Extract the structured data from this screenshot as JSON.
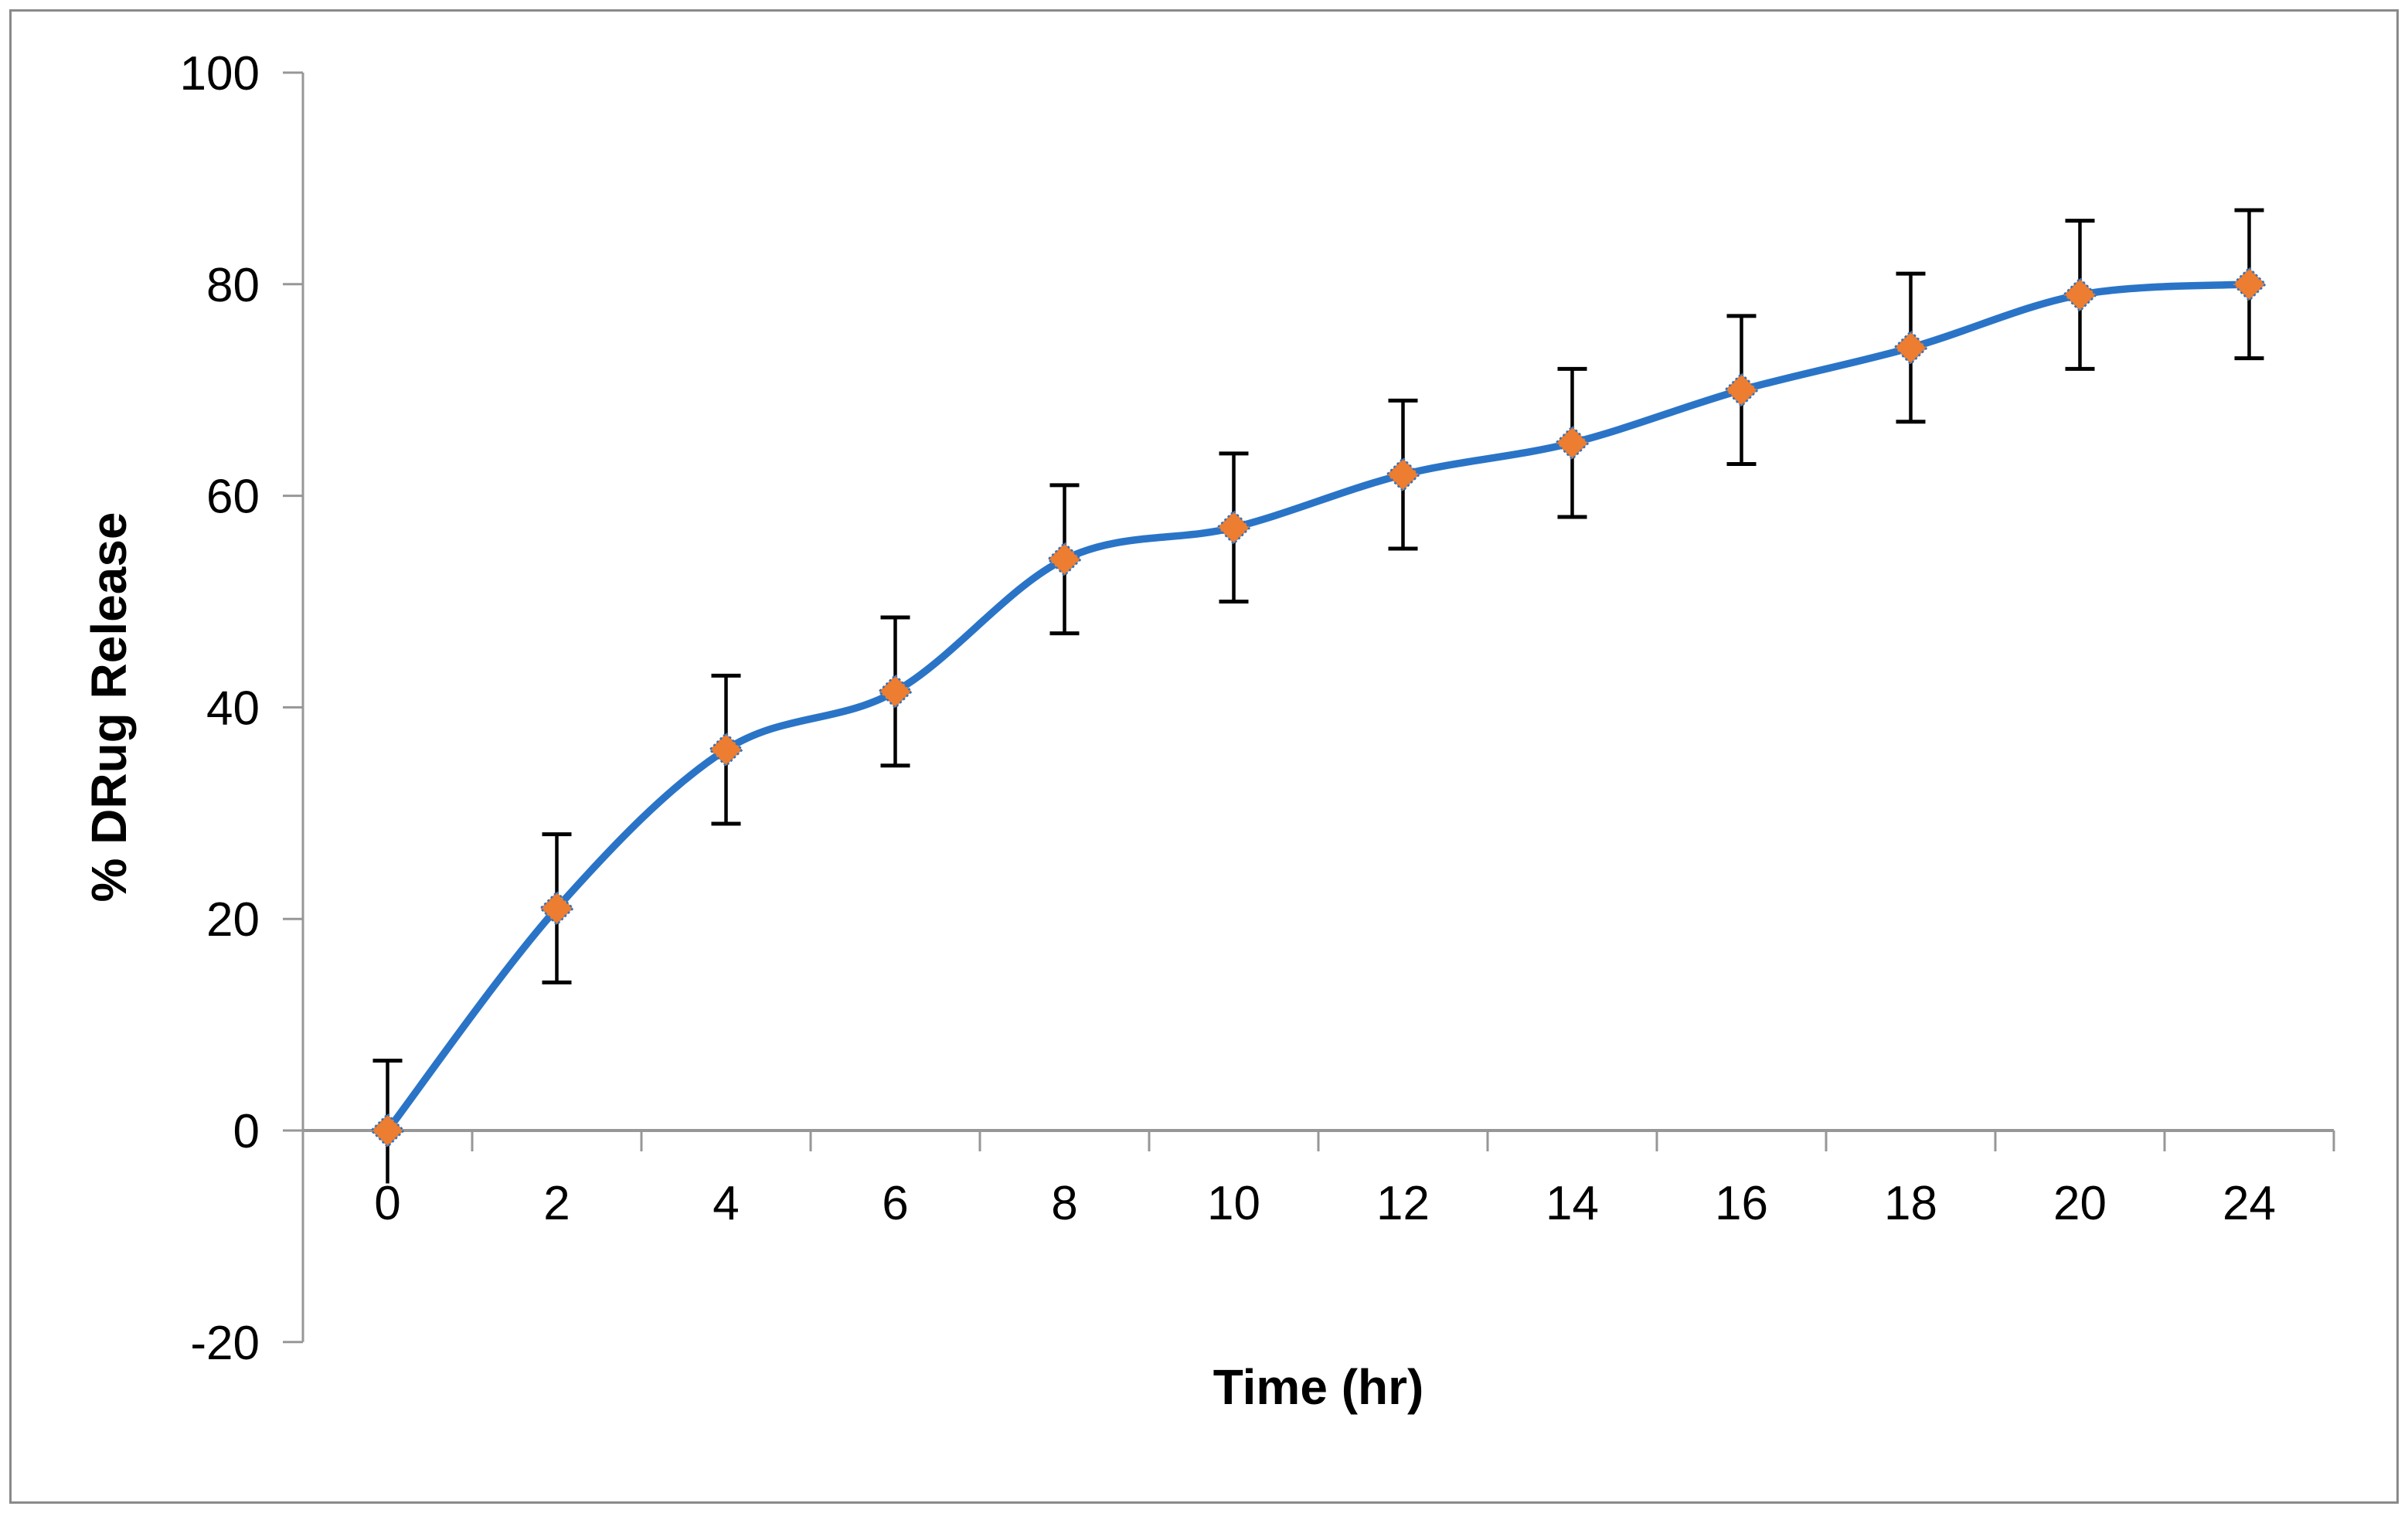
{
  "chart_data": {
    "type": "line",
    "title": "",
    "xlabel": "Time (hr)",
    "ylabel": "% DRug Release",
    "categories": [
      "0",
      "2",
      "4",
      "6",
      "8",
      "10",
      "12",
      "14",
      "16",
      "18",
      "20",
      "24"
    ],
    "series": [
      {
        "name": "% drug release",
        "values": [
          0,
          21,
          36,
          41.5,
          54,
          57,
          62,
          65,
          70,
          74,
          79,
          80
        ],
        "error_up": [
          6.6,
          7,
          7,
          7,
          7,
          7,
          7,
          7,
          7,
          7,
          7,
          7
        ],
        "error_down": [
          5,
          7,
          7,
          7,
          7,
          7,
          7,
          7,
          7,
          7,
          7,
          7
        ],
        "error_caps_bottom": [
          false,
          true,
          true,
          true,
          true,
          true,
          true,
          true,
          true,
          true,
          true,
          true
        ]
      }
    ],
    "y_ticks": [
      100,
      80,
      60,
      40,
      20,
      0,
      -20
    ],
    "ylim": [
      -20,
      100
    ],
    "grid": "off",
    "legend": "none",
    "line_smooth": true,
    "marker_shape": "diamond",
    "colors": {
      "line": "#2a74c7",
      "marker_fill": "#ed7d31",
      "error_bar": "#000000",
      "axis": "#979797",
      "text": "#000000",
      "figure_border": "#8a8a8a"
    }
  }
}
